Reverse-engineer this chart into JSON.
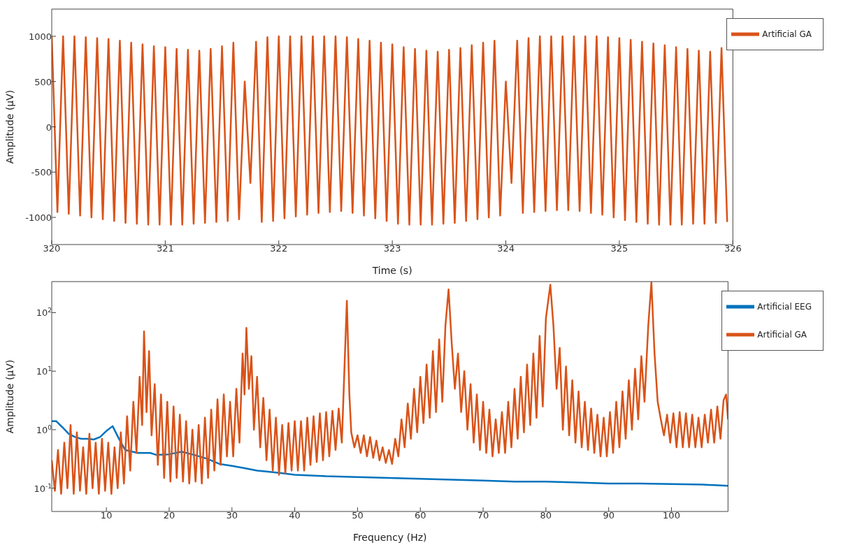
{
  "chart_data": [
    {
      "type": "line",
      "xlabel": "Time (s)",
      "ylabel": "Amplitude (µV)",
      "xlim": [
        320,
        326
      ],
      "xticks": [
        320,
        321,
        322,
        323,
        324,
        325,
        326
      ],
      "ylim": [
        -1300,
        1300
      ],
      "yticks": [
        -1000,
        -500,
        0,
        500,
        1000
      ],
      "legend": "top right",
      "series": [
        {
          "name": "Artificial GA",
          "color": "#d95319",
          "x": [
            320.0,
            320.05,
            320.1,
            320.15,
            320.2,
            320.25,
            320.3,
            320.35,
            320.4,
            320.45,
            320.5,
            320.55,
            320.6,
            320.65,
            320.7,
            320.75,
            320.8,
            320.85,
            320.9,
            320.95,
            321.0,
            321.05,
            321.1,
            321.15,
            321.2,
            321.25,
            321.3,
            321.35,
            321.4,
            321.45,
            321.5,
            321.55,
            321.6,
            321.65,
            321.7,
            321.75,
            321.8,
            321.85,
            321.9,
            321.95,
            322.0,
            322.05,
            322.1,
            322.15,
            322.2,
            322.25,
            322.3,
            322.35,
            322.4,
            322.45,
            322.5,
            322.55,
            322.6,
            322.65,
            322.7,
            322.75,
            322.8,
            322.85,
            322.9,
            322.95,
            323.0,
            323.05,
            323.1,
            323.15,
            323.2,
            323.25,
            323.3,
            323.35,
            323.4,
            323.45,
            323.5,
            323.55,
            323.6,
            323.65,
            323.7,
            323.75,
            323.8,
            323.85,
            323.9,
            323.95,
            324.0,
            324.05,
            324.1,
            324.15,
            324.2,
            324.25,
            324.3,
            324.35,
            324.4,
            324.45,
            324.5,
            324.55,
            324.6,
            324.65,
            324.7,
            324.75,
            324.8,
            324.85,
            324.9,
            324.95,
            325.0,
            325.05,
            325.1,
            325.15,
            325.2,
            325.25,
            325.3,
            325.35,
            325.4,
            325.45,
            325.5,
            325.55,
            325.6,
            325.65,
            325.7,
            325.75,
            325.8,
            325.85,
            325.9,
            325.95
          ],
          "values": [
            1000,
            -940,
            1000,
            -960,
            1000,
            -980,
            990,
            -1000,
            980,
            -1020,
            970,
            -1040,
            950,
            -1060,
            930,
            -1070,
            910,
            -1080,
            890,
            -1080,
            880,
            -1080,
            860,
            -1080,
            850,
            -1070,
            840,
            -1060,
            860,
            -1050,
            890,
            -1040,
            930,
            -1020,
            500,
            -620,
            940,
            -1050,
            990,
            -1040,
            1000,
            -1010,
            1000,
            -990,
            1000,
            -970,
            1000,
            -950,
            1000,
            -940,
            1000,
            -930,
            990,
            -950,
            970,
            -980,
            950,
            -1010,
            930,
            -1040,
            910,
            -1070,
            880,
            -1080,
            860,
            -1080,
            840,
            -1080,
            830,
            -1070,
            850,
            -1060,
            870,
            -1040,
            900,
            -1020,
            930,
            -1000,
            950,
            -980,
            500,
            -620,
            950,
            -950,
            980,
            -940,
            1000,
            -930,
            1000,
            -920,
            1000,
            -920,
            1000,
            -930,
            1000,
            -950,
            1000,
            -970,
            990,
            -1000,
            980,
            -1030,
            960,
            -1050,
            940,
            -1070,
            920,
            -1080,
            900,
            -1080,
            880,
            -1080,
            860,
            -1070,
            840,
            -1070,
            830,
            -1060,
            870,
            -1050
          ]
        }
      ]
    },
    {
      "type": "line",
      "xlabel": "Frequency (Hz)",
      "ylabel": "Amplitude (µV)",
      "xlim": [
        1.3,
        109
      ],
      "xticks": [
        10,
        20,
        30,
        40,
        50,
        60,
        70,
        80,
        90,
        100
      ],
      "ylim": [
        0.04,
        340
      ],
      "log": "y",
      "yticks": [
        {
          "value": 0.1,
          "label": "10$^{-1}$"
        },
        {
          "value": 1,
          "label": "10$^{0}$"
        },
        {
          "value": 10,
          "label": "10$^{1}$"
        },
        {
          "value": 100,
          "label": "10$^{2}$"
        }
      ],
      "legend": "top right",
      "series": [
        {
          "name": "Artificial EEG",
          "color": "#0072bd",
          "x": [
            1.3,
            2,
            3,
            4,
            5,
            6,
            7,
            8,
            9,
            10,
            11,
            12,
            13,
            15,
            17,
            18,
            20,
            22,
            24,
            26,
            28,
            30,
            32,
            34,
            36,
            38,
            40,
            45,
            50,
            55,
            60,
            65,
            70,
            75,
            80,
            85,
            90,
            95,
            100,
            105,
            109
          ],
          "values": [
            1.4,
            1.4,
            1.1,
            0.85,
            0.75,
            0.7,
            0.7,
            0.68,
            0.75,
            0.95,
            1.15,
            0.7,
            0.45,
            0.4,
            0.4,
            0.37,
            0.38,
            0.42,
            0.37,
            0.32,
            0.26,
            0.24,
            0.22,
            0.2,
            0.19,
            0.18,
            0.17,
            0.16,
            0.155,
            0.15,
            0.145,
            0.14,
            0.135,
            0.13,
            0.13,
            0.125,
            0.12,
            0.12,
            0.118,
            0.115,
            0.11
          ]
        },
        {
          "name": "Artificial GA",
          "color": "#d95319",
          "x": [
            1.3,
            1.8,
            2.3,
            2.8,
            3.3,
            3.8,
            4.3,
            4.8,
            5.3,
            5.8,
            6.3,
            6.8,
            7.3,
            7.8,
            8.3,
            8.8,
            9.3,
            9.8,
            10.3,
            10.8,
            11.3,
            11.8,
            12.3,
            12.8,
            13.3,
            13.8,
            14.3,
            14.8,
            15.3,
            15.7,
            16.0,
            16.4,
            16.8,
            17.2,
            17.7,
            18.2,
            18.7,
            19.2,
            19.7,
            20.2,
            20.7,
            21.2,
            21.7,
            22.2,
            22.7,
            23.2,
            23.7,
            24.2,
            24.7,
            25.2,
            25.7,
            26.2,
            26.7,
            27.2,
            27.7,
            28.2,
            28.7,
            29.2,
            29.7,
            30.2,
            30.7,
            31.2,
            31.7,
            32.0,
            32.3,
            32.7,
            33.1,
            33.5,
            34.0,
            34.5,
            35.0,
            35.5,
            36.0,
            36.5,
            37.0,
            37.5,
            38.0,
            38.5,
            39.0,
            39.5,
            40.0,
            40.5,
            41.0,
            41.5,
            42.0,
            42.5,
            43.0,
            43.5,
            44.0,
            44.5,
            45.0,
            45.5,
            46.0,
            46.5,
            47.0,
            47.5,
            48.0,
            48.3,
            48.7,
            49.0,
            49.5,
            50.0,
            50.5,
            51.0,
            51.5,
            52.0,
            52.5,
            53.0,
            53.5,
            54.0,
            54.5,
            55.0,
            55.5,
            56.0,
            56.5,
            57.0,
            57.5,
            58.0,
            58.5,
            59.0,
            59.5,
            60.0,
            60.5,
            61.0,
            61.5,
            62.0,
            62.5,
            63.0,
            63.5,
            64.0,
            64.5,
            65.0,
            65.5,
            66.0,
            66.5,
            67.0,
            67.5,
            68.0,
            68.5,
            69.0,
            69.5,
            70.0,
            70.5,
            71.0,
            71.5,
            72.0,
            72.5,
            73.0,
            73.5,
            74.0,
            74.5,
            75.0,
            75.5,
            76.0,
            76.5,
            77.0,
            77.5,
            78.0,
            78.5,
            79.0,
            79.5,
            80.0,
            80.7,
            81.2,
            81.7,
            82.2,
            82.7,
            83.2,
            83.7,
            84.2,
            84.7,
            85.2,
            85.7,
            86.2,
            86.7,
            87.2,
            87.7,
            88.2,
            88.7,
            89.2,
            89.7,
            90.2,
            90.7,
            91.2,
            91.7,
            92.2,
            92.7,
            93.2,
            93.7,
            94.2,
            94.7,
            95.2,
            95.7,
            96.3,
            96.8,
            97.3,
            97.8,
            98.3,
            98.8,
            99.3,
            99.8,
            100.3,
            100.8,
            101.3,
            101.8,
            102.3,
            102.8,
            103.3,
            103.8,
            104.3,
            104.8,
            105.3,
            105.8,
            106.3,
            106.8,
            107.3,
            107.8,
            108.3,
            108.7,
            109
          ],
          "values": [
            0.3,
            0.09,
            0.45,
            0.08,
            0.6,
            0.1,
            1.2,
            0.08,
            0.9,
            0.09,
            0.5,
            0.08,
            0.85,
            0.1,
            0.6,
            0.08,
            0.7,
            0.09,
            0.6,
            0.08,
            0.5,
            0.1,
            0.9,
            0.12,
            1.7,
            0.2,
            3,
            0.4,
            8,
            1.2,
            48,
            2,
            22,
            0.8,
            6,
            0.25,
            4,
            0.15,
            3,
            0.13,
            2.5,
            0.15,
            1.8,
            0.13,
            1.4,
            0.12,
            1.0,
            0.13,
            1.2,
            0.12,
            1.6,
            0.15,
            2.2,
            0.2,
            3.3,
            0.25,
            4,
            0.35,
            3,
            0.35,
            5,
            0.6,
            20,
            4,
            55,
            5,
            18,
            1,
            8,
            0.5,
            3.5,
            0.3,
            2.2,
            0.2,
            1.6,
            0.17,
            1.2,
            0.18,
            1.3,
            0.2,
            1.4,
            0.2,
            1.4,
            0.2,
            1.6,
            0.25,
            1.7,
            0.28,
            1.9,
            0.3,
            2,
            0.35,
            2.1,
            0.45,
            2.3,
            0.6,
            20,
            160,
            4,
            0.9,
            0.5,
            0.8,
            0.4,
            0.8,
            0.35,
            0.75,
            0.33,
            0.65,
            0.3,
            0.5,
            0.27,
            0.45,
            0.26,
            0.7,
            0.35,
            1.5,
            0.5,
            2.8,
            0.7,
            5,
            0.9,
            8,
            1.3,
            13,
            1.6,
            22,
            2,
            35,
            3,
            60,
            250,
            30,
            5,
            20,
            2,
            10,
            1,
            6,
            0.6,
            4,
            0.45,
            3,
            0.4,
            2.2,
            0.35,
            1.5,
            0.4,
            2,
            0.4,
            3,
            0.5,
            5,
            0.7,
            8,
            0.9,
            13,
            1.2,
            20,
            1.6,
            40,
            2.5,
            80,
            300,
            60,
            5,
            25,
            1,
            12,
            0.8,
            7,
            0.6,
            4.5,
            0.5,
            3,
            0.45,
            2.3,
            0.4,
            1.8,
            0.35,
            1.6,
            0.35,
            2,
            0.4,
            3,
            0.5,
            4.5,
            0.7,
            7,
            1,
            11,
            1.5,
            18,
            3,
            60,
            330,
            20,
            3,
            1.5,
            0.8,
            1.8,
            0.6,
            1.9,
            0.5,
            2,
            0.5,
            1.9,
            0.5,
            1.8,
            0.5,
            1.6,
            0.5,
            1.8,
            0.6,
            2.2,
            0.6,
            2.5,
            0.7,
            3.2,
            4,
            1.5
          ]
        }
      ]
    }
  ]
}
